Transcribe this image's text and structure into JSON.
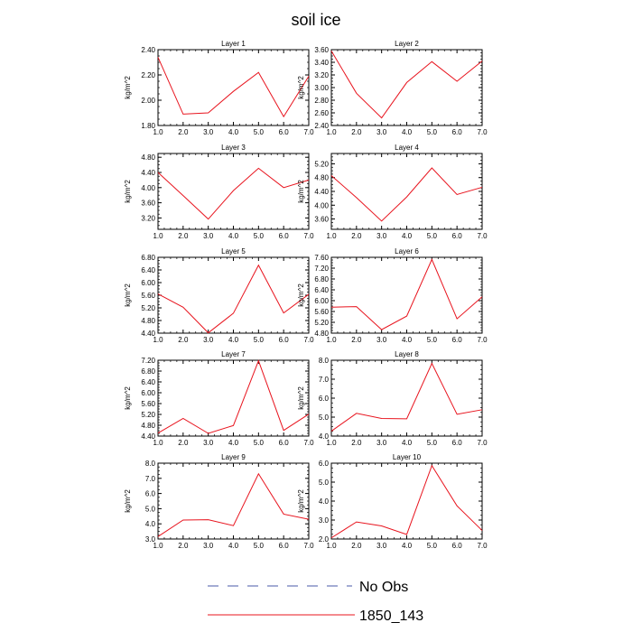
{
  "figure": {
    "title": "soil ice"
  },
  "legend": [
    {
      "label": "No Obs",
      "color": "#4a5aa8",
      "style": "dashed"
    },
    {
      "label": "1850_143",
      "color": "#e8141e",
      "style": "solid"
    }
  ],
  "chart_data": [
    {
      "type": "line",
      "title": "Layer 1",
      "ylabel": "kg/m^2",
      "x": [
        1,
        2,
        3,
        4,
        5,
        6,
        7
      ],
      "xlim": [
        1,
        7
      ],
      "xticks": [
        "1.0",
        "2.0",
        "3.0",
        "4.0",
        "5.0",
        "6.0",
        "7.0"
      ],
      "ylim": [
        1.8,
        2.4
      ],
      "yticks": [
        "1.80",
        "2.00",
        "2.20",
        "2.40"
      ],
      "ytick_values": [
        1.8,
        2.0,
        2.2,
        2.4
      ],
      "series": [
        {
          "name": "1850_143",
          "values": [
            2.34,
            1.89,
            1.9,
            2.07,
            2.22,
            1.87,
            2.19
          ]
        }
      ]
    },
    {
      "type": "line",
      "title": "Layer 2",
      "ylabel": "kg/m^2",
      "x": [
        1,
        2,
        3,
        4,
        5,
        6,
        7
      ],
      "xlim": [
        1,
        7
      ],
      "xticks": [
        "1.0",
        "2.0",
        "3.0",
        "4.0",
        "5.0",
        "6.0",
        "7.0"
      ],
      "ylim": [
        2.4,
        3.6
      ],
      "yticks": [
        "2.40",
        "2.60",
        "2.80",
        "3.00",
        "3.20",
        "3.40",
        "3.60"
      ],
      "ytick_values": [
        2.4,
        2.6,
        2.8,
        3.0,
        3.2,
        3.4,
        3.6
      ],
      "series": [
        {
          "name": "1850_143",
          "values": [
            3.58,
            2.91,
            2.52,
            3.08,
            3.41,
            3.1,
            3.42
          ]
        }
      ]
    },
    {
      "type": "line",
      "title": "Layer 3",
      "ylabel": "kg/m^2",
      "x": [
        1,
        2,
        3,
        4,
        5,
        6,
        7
      ],
      "xlim": [
        1,
        7
      ],
      "xticks": [
        "1.0",
        "2.0",
        "3.0",
        "4.0",
        "5.0",
        "6.0",
        "7.0"
      ],
      "ylim": [
        2.9,
        4.9
      ],
      "yticks": [
        "3.20",
        "3.60",
        "4.00",
        "4.40",
        "4.80"
      ],
      "ytick_values": [
        3.2,
        3.6,
        4.0,
        4.4,
        4.8
      ],
      "series": [
        {
          "name": "1850_143",
          "values": [
            4.4,
            3.79,
            3.17,
            3.92,
            4.51,
            4.0,
            4.2
          ]
        }
      ]
    },
    {
      "type": "line",
      "title": "Layer 4",
      "ylabel": "kg/m^2",
      "x": [
        1,
        2,
        3,
        4,
        5,
        6,
        7
      ],
      "xlim": [
        1,
        7
      ],
      "xticks": [
        "1.0",
        "2.0",
        "3.0",
        "4.0",
        "5.0",
        "6.0",
        "7.0"
      ],
      "ylim": [
        3.3,
        5.5
      ],
      "yticks": [
        "3.60",
        "4.00",
        "4.40",
        "4.80",
        "5.20"
      ],
      "ytick_values": [
        3.6,
        4.0,
        4.4,
        4.8,
        5.2
      ],
      "series": [
        {
          "name": "1850_143",
          "values": [
            4.86,
            4.22,
            3.54,
            4.24,
            5.08,
            4.31,
            4.52
          ]
        }
      ]
    },
    {
      "type": "line",
      "title": "Layer 5",
      "ylabel": "kg/m^2",
      "x": [
        1,
        2,
        3,
        4,
        5,
        6,
        7
      ],
      "xlim": [
        1,
        7
      ],
      "xticks": [
        "1.0",
        "2.0",
        "3.0",
        "4.0",
        "5.0",
        "6.0",
        "7.0"
      ],
      "ylim": [
        4.4,
        6.8
      ],
      "yticks": [
        "4.40",
        "4.80",
        "5.20",
        "5.60",
        "6.00",
        "6.40",
        "6.80"
      ],
      "ytick_values": [
        4.4,
        4.8,
        5.2,
        5.6,
        6.0,
        6.4,
        6.8
      ],
      "series": [
        {
          "name": "1850_143",
          "values": [
            5.64,
            5.22,
            4.41,
            5.03,
            6.55,
            5.04,
            5.63
          ]
        }
      ]
    },
    {
      "type": "line",
      "title": "Layer 6",
      "ylabel": "kg/m^2",
      "x": [
        1,
        2,
        3,
        4,
        5,
        6,
        7
      ],
      "xlim": [
        1,
        7
      ],
      "xticks": [
        "1.0",
        "2.0",
        "3.0",
        "4.0",
        "5.0",
        "6.0",
        "7.0"
      ],
      "ylim": [
        4.8,
        7.6
      ],
      "yticks": [
        "4.80",
        "5.20",
        "5.60",
        "6.00",
        "6.40",
        "6.80",
        "7.20",
        "7.60"
      ],
      "ytick_values": [
        4.8,
        5.2,
        5.6,
        6.0,
        6.4,
        6.8,
        7.2,
        7.6
      ],
      "series": [
        {
          "name": "1850_143",
          "values": [
            5.76,
            5.78,
            4.93,
            5.43,
            7.52,
            5.33,
            6.14
          ]
        }
      ]
    },
    {
      "type": "line",
      "title": "Layer 7",
      "ylabel": "kg/m^2",
      "x": [
        1,
        2,
        3,
        4,
        5,
        6,
        7
      ],
      "xlim": [
        1,
        7
      ],
      "xticks": [
        "1.0",
        "2.0",
        "3.0",
        "4.0",
        "5.0",
        "6.0",
        "7.0"
      ],
      "ylim": [
        4.4,
        7.2
      ],
      "yticks": [
        "4.40",
        "4.80",
        "5.20",
        "5.60",
        "6.00",
        "6.40",
        "6.80",
        "7.20"
      ],
      "ytick_values": [
        4.4,
        4.8,
        5.2,
        5.6,
        6.0,
        6.4,
        6.8,
        7.2
      ],
      "series": [
        {
          "name": "1850_143",
          "values": [
            4.51,
            5.05,
            4.5,
            4.79,
            7.18,
            4.61,
            5.21
          ]
        }
      ]
    },
    {
      "type": "line",
      "title": "Layer 8",
      "ylabel": "kg/m^2",
      "x": [
        1,
        2,
        3,
        4,
        5,
        6,
        7
      ],
      "xlim": [
        1,
        7
      ],
      "xticks": [
        "1.0",
        "2.0",
        "3.0",
        "4.0",
        "5.0",
        "6.0",
        "7.0"
      ],
      "ylim": [
        4.0,
        8.0
      ],
      "yticks": [
        "4.0",
        "5.0",
        "6.0",
        "7.0",
        "8.0"
      ],
      "ytick_values": [
        4.0,
        5.0,
        6.0,
        7.0,
        8.0
      ],
      "series": [
        {
          "name": "1850_143",
          "values": [
            4.26,
            5.2,
            4.93,
            4.91,
            7.83,
            5.15,
            5.39
          ]
        }
      ]
    },
    {
      "type": "line",
      "title": "Layer 9",
      "ylabel": "kg/m^2",
      "x": [
        1,
        2,
        3,
        4,
        5,
        6,
        7
      ],
      "xlim": [
        1,
        7
      ],
      "xticks": [
        "1.0",
        "2.0",
        "3.0",
        "4.0",
        "5.0",
        "6.0",
        "7.0"
      ],
      "ylim": [
        3.0,
        8.0
      ],
      "yticks": [
        "3.0",
        "4.0",
        "5.0",
        "6.0",
        "7.0",
        "8.0"
      ],
      "ytick_values": [
        3.0,
        4.0,
        5.0,
        6.0,
        7.0,
        8.0
      ],
      "series": [
        {
          "name": "1850_143",
          "values": [
            3.16,
            4.25,
            4.27,
            3.88,
            7.3,
            4.64,
            4.3
          ]
        }
      ]
    },
    {
      "type": "line",
      "title": "Layer 10",
      "ylabel": "kg/m^2",
      "x": [
        1,
        2,
        3,
        4,
        5,
        6,
        7
      ],
      "xlim": [
        1,
        7
      ],
      "xticks": [
        "1.0",
        "2.0",
        "3.0",
        "4.0",
        "5.0",
        "6.0",
        "7.0"
      ],
      "ylim": [
        2.0,
        6.0
      ],
      "yticks": [
        "2.0",
        "3.0",
        "4.0",
        "5.0",
        "6.0"
      ],
      "ytick_values": [
        2.0,
        3.0,
        4.0,
        5.0,
        6.0
      ],
      "series": [
        {
          "name": "1850_143",
          "values": [
            2.06,
            2.9,
            2.69,
            2.24,
            5.87,
            3.75,
            2.45
          ]
        }
      ]
    }
  ]
}
